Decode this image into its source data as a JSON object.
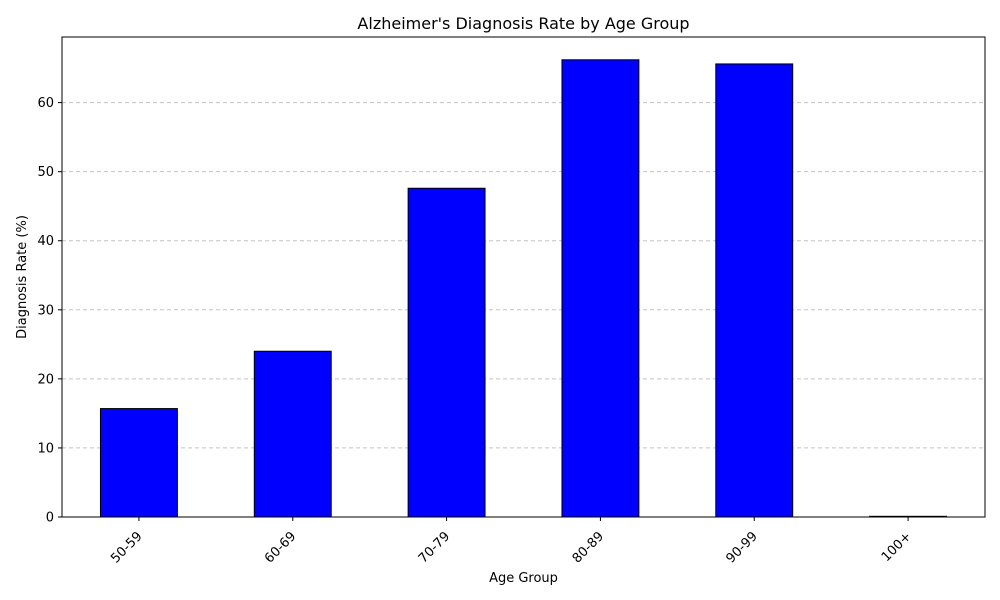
{
  "chart_data": {
    "type": "bar",
    "title": "Alzheimer's Diagnosis Rate by Age Group",
    "xlabel": "Age Group",
    "ylabel": "Diagnosis Rate (%)",
    "categories": [
      "50-59",
      "60-69",
      "70-79",
      "80-89",
      "90-99",
      "100+"
    ],
    "values": [
      15.7,
      24.0,
      47.6,
      66.2,
      65.6,
      0.1
    ],
    "ylim": [
      0,
      69.5
    ],
    "yticks": [
      0,
      10,
      20,
      30,
      40,
      50,
      60
    ],
    "grid": "y-dashed",
    "bar_color": "#0000ff",
    "bar_edge_color": "#000000",
    "grid_color": "#c4c4c4",
    "legend": "none"
  }
}
